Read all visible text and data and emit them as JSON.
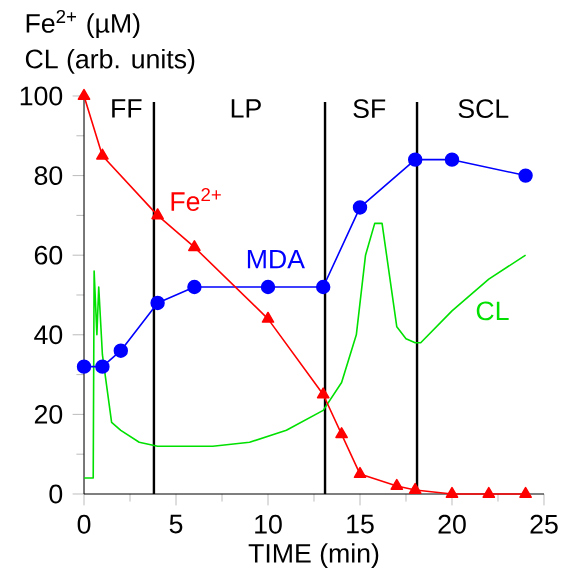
{
  "chart_data": {
    "type": "line",
    "title": "Fe$^{2+}$ (µM)",
    "subtitle": "CL (arb. units)",
    "xlabel": "TIME (min)",
    "xlim": [
      0,
      25
    ],
    "xticks": [
      0,
      5,
      10,
      15,
      20,
      25
    ],
    "ylim": [
      0,
      100
    ],
    "yticks": [
      0,
      20,
      40,
      60,
      80,
      100
    ],
    "series": [
      {
        "name": "Fe$^{2+}$",
        "color": "#ff0000",
        "marker": "triangle",
        "x": [
          0,
          1,
          4,
          6,
          10,
          13,
          14,
          15,
          17,
          18,
          20,
          22,
          24
        ],
        "values": [
          100,
          85,
          70,
          62,
          44,
          25,
          15,
          5,
          2,
          1,
          0,
          0,
          0
        ]
      },
      {
        "name": "MDA",
        "color": "#0000ff",
        "marker": "circle",
        "x": [
          0,
          1,
          2,
          4,
          6,
          10,
          13,
          15,
          18,
          20,
          24
        ],
        "values": [
          32,
          32,
          36,
          48,
          52,
          52,
          52,
          72,
          84,
          84,
          80
        ]
      },
      {
        "name": "CL",
        "color": "#00e000",
        "marker": "none",
        "x": [
          0,
          0.5,
          0.55,
          0.7,
          0.8,
          1,
          1.5,
          2,
          3,
          4,
          7,
          9,
          11,
          13,
          14,
          14.8,
          15.3,
          15.8,
          16.2,
          16.6,
          17,
          17.5,
          18,
          18.3,
          20,
          22,
          24
        ],
        "values": [
          4,
          4,
          56,
          40,
          52,
          35,
          18,
          16,
          13,
          12,
          12,
          13,
          16,
          21,
          28,
          40,
          60,
          68,
          68,
          55,
          42,
          39,
          38,
          38,
          46,
          54,
          60
        ]
      }
    ],
    "ref_lines": [
      {
        "axis": "x",
        "value": 3.8,
        "color": "#000000"
      },
      {
        "axis": "x",
        "value": 13.1,
        "color": "#000000"
      },
      {
        "axis": "x",
        "value": 18.1,
        "color": "#000000"
      }
    ],
    "annotations": [
      "FF",
      "LP",
      "SF",
      "SCL"
    ]
  }
}
